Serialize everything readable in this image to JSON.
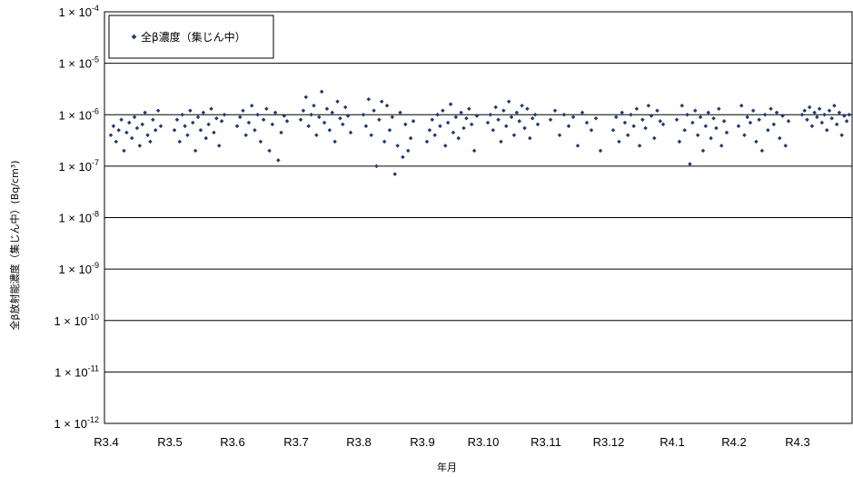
{
  "chart_data": {
    "type": "scatter",
    "y_scale": "log",
    "ylim": [
      1e-12,
      0.0001
    ],
    "y_ticks": [
      {
        "base": "1 × 10",
        "exp": "-12"
      },
      {
        "base": "1 × 10",
        "exp": "-11"
      },
      {
        "base": "1 × 10",
        "exp": "-10"
      },
      {
        "base": "1 × 10",
        "exp": "-9"
      },
      {
        "base": "1 × 10",
        "exp": "-8"
      },
      {
        "base": "1 × 10",
        "exp": "-7"
      },
      {
        "base": "1 × 10",
        "exp": "-6"
      },
      {
        "base": "1 × 10",
        "exp": "-5"
      },
      {
        "base": "1 × 10",
        "exp": "-4"
      }
    ],
    "x_ticks": [
      "R3.4",
      "R3.5",
      "R3.6",
      "R3.7",
      "R3.8",
      "R3.9",
      "R3.10",
      "R3.11",
      "R3.12",
      "R4.1",
      "R4.2",
      "R4.3"
    ],
    "xlabel": "年月",
    "ylabel": "全β放射能濃度（集じん中）(Bq/cm³)",
    "grid": "horizontal",
    "legend": {
      "position": "top-left",
      "entry": "全β濃度（集じん中）"
    },
    "marker_color": "#1f3a6e",
    "series": [
      {
        "name": "全β濃度（集じん中）",
        "points": [
          {
            "month": "R3.4",
            "values": [
              4e-07,
              6e-07,
              3e-07,
              5e-07,
              8e-07,
              2e-07,
              4.5e-07,
              7e-07,
              3.5e-07,
              9e-07,
              5.5e-07,
              2.5e-07,
              6.5e-07,
              1.1e-06,
              4e-07,
              3e-07,
              8e-07,
              5e-07,
              1.2e-06,
              6e-07
            ]
          },
          {
            "month": "R3.5",
            "values": [
              5e-07,
              8e-07,
              3e-07,
              1e-06,
              6e-07,
              4e-07,
              1.2e-06,
              7e-07,
              2e-07,
              9e-07,
              5e-07,
              1.1e-06,
              3.5e-07,
              6.5e-07,
              1.3e-06,
              4.5e-07,
              8.5e-07,
              2.5e-07,
              7.5e-07,
              1e-06
            ]
          },
          {
            "month": "R3.6",
            "values": [
              6e-07,
              9e-07,
              1.2e-06,
              4e-07,
              7e-07,
              1.5e-06,
              5e-07,
              1e-06,
              3e-07,
              8e-07,
              1.3e-06,
              2e-07,
              6.5e-07,
              1.1e-06,
              1.3e-07,
              4.5e-07,
              9.5e-07,
              7.5e-07
            ]
          },
          {
            "month": "R3.7",
            "values": [
              8e-07,
              1.2e-06,
              2.2e-06,
              6e-07,
              1e-06,
              1.5e-06,
              4e-07,
              9e-07,
              2.8e-06,
              7e-07,
              1.3e-06,
              5e-07,
              1.1e-06,
              3e-07,
              1.8e-06,
              8.5e-07,
              6.5e-07,
              1.4e-06,
              9.5e-07,
              4.5e-07
            ]
          },
          {
            "month": "R3.8",
            "values": [
              1e-06,
              6e-07,
              2e-06,
              4e-07,
              1.2e-06,
              1e-07,
              8e-07,
              1.8e-06,
              3e-07,
              1.5e-06,
              5e-07,
              9e-07,
              7e-08,
              2.5e-07,
              1.1e-06,
              1.5e-07,
              6.5e-07,
              2e-07,
              3.5e-07,
              7.5e-07
            ]
          },
          {
            "month": "R3.9",
            "values": [
              3e-07,
              5e-07,
              8e-07,
              4e-07,
              1e-06,
              6e-07,
              1.2e-06,
              2.5e-07,
              7e-07,
              1.6e-06,
              4.5e-07,
              9e-07,
              3.5e-07,
              1.1e-06,
              5.5e-07,
              8.5e-07,
              1.3e-06,
              6.5e-07,
              2e-07,
              9.5e-07
            ]
          },
          {
            "month": "R3.10",
            "values": [
              7e-07,
              1e-06,
              5e-07,
              1.4e-06,
              8e-07,
              3e-07,
              1.2e-06,
              6e-07,
              1.8e-06,
              9e-07,
              4e-07,
              1.1e-06,
              7.5e-07,
              1.5e-06,
              5.5e-07,
              1.3e-06,
              3.5e-07,
              8.5e-07,
              1e-06,
              6.5e-07
            ]
          },
          {
            "month": "R3.11",
            "values": [
              8e-07,
              1.2e-06,
              4e-07,
              1e-06,
              6e-07,
              9e-07,
              2.5e-07,
              1.1e-06,
              7e-07,
              5e-07,
              8.5e-07,
              2e-07
            ]
          },
          {
            "month": "R3.12",
            "values": [
              5e-07,
              9e-07,
              3e-07,
              1.1e-06,
              7e-07,
              4e-07,
              1e-06,
              6e-07,
              1.3e-06,
              2.5e-07,
              8e-07,
              5.5e-07,
              1.5e-06,
              9.5e-07,
              3.5e-07,
              1.2e-06,
              7.5e-07,
              6.5e-07
            ]
          },
          {
            "month": "R4.1",
            "values": [
              8e-07,
              3e-07,
              1.5e-06,
              5e-07,
              1e-06,
              1.1e-07,
              7e-07,
              1.2e-06,
              4e-07,
              9e-07,
              2e-07,
              6e-07,
              1.1e-06,
              3.5e-07,
              8.5e-07,
              5.5e-07,
              1.3e-06,
              2.5e-07,
              7.5e-07,
              4.5e-07
            ]
          },
          {
            "month": "R4.2",
            "values": [
              6e-07,
              1.5e-06,
              4e-07,
              9e-07,
              7e-07,
              1.2e-06,
              3e-07,
              8e-07,
              2e-07,
              1e-06,
              5e-07,
              1.3e-06,
              6.5e-07,
              1.1e-06,
              3.5e-07,
              9.5e-07,
              2.5e-07,
              7.5e-07
            ]
          },
          {
            "month": "R4.3",
            "values": [
              1e-06,
              1.2e-06,
              8e-07,
              1.4e-06,
              6e-07,
              1.1e-06,
              9e-07,
              1.3e-06,
              7e-07,
              1e-06,
              5e-07,
              1.2e-06,
              8.5e-07,
              1.5e-06,
              6.5e-07,
              1.1e-06,
              4e-07,
              9.5e-07,
              7.5e-07,
              1e-06,
              5.5e-07,
              1.2e-06,
              8e-07
            ]
          }
        ]
      }
    ]
  }
}
